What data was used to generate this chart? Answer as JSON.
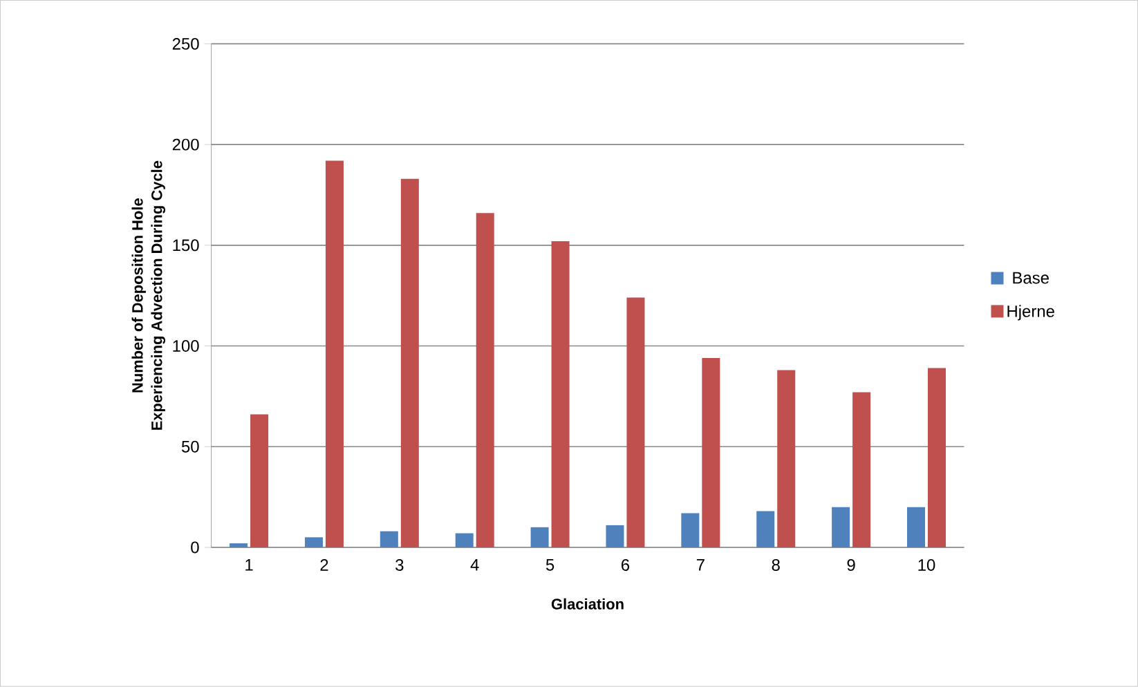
{
  "chart_data": {
    "type": "bar",
    "xlabel": "Glaciation",
    "ylabel": "Number of Deposition Hole\nExperiencing Advection During Cycle",
    "categories": [
      "1",
      "2",
      "3",
      "4",
      "5",
      "6",
      "7",
      "8",
      "9",
      "10"
    ],
    "series": [
      {
        "name": "Base",
        "color": "#4f81bd",
        "values": [
          2,
          5,
          8,
          7,
          10,
          11,
          17,
          18,
          20,
          20
        ]
      },
      {
        "name": "Hjerne",
        "color": "#c0504d",
        "values": [
          66,
          192,
          183,
          166,
          152,
          124,
          94,
          88,
          77,
          89
        ]
      }
    ],
    "ylim": [
      0,
      250
    ],
    "yticks": [
      0,
      50,
      100,
      150,
      200,
      250
    ],
    "grid": "y",
    "legend": "right"
  }
}
